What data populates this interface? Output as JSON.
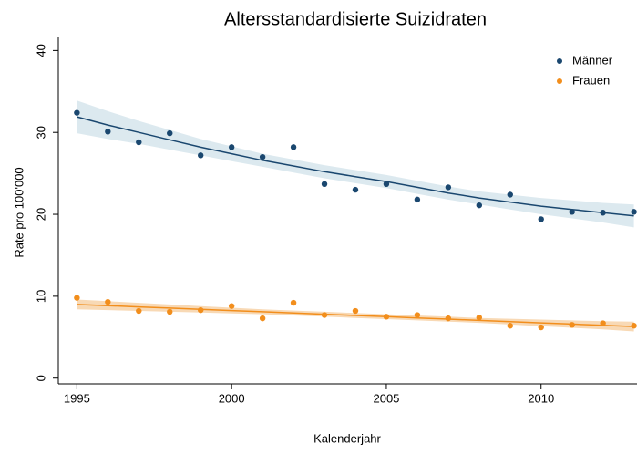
{
  "chart_data": {
    "type": "scatter_fit",
    "title": "Altersstandardisierte Suizidraten",
    "xlabel": "Kalenderjahr",
    "ylabel": "Rate pro 100'000",
    "x": [
      1995,
      1996,
      1997,
      1998,
      1999,
      2000,
      2001,
      2002,
      2003,
      2004,
      2005,
      2006,
      2007,
      2008,
      2009,
      2010,
      2011,
      2012,
      2013
    ],
    "xlim": [
      1994.4,
      2013.1
    ],
    "xticks": [
      1995,
      2000,
      2005,
      2010
    ],
    "ylim": [
      -0.7,
      41.6
    ],
    "yticks": [
      0,
      10,
      20,
      30,
      40
    ],
    "legend": "top-right",
    "series": [
      {
        "name": "Männer",
        "color": "#1a476f",
        "band_color": "#dce9ef",
        "values": [
          32.4,
          30.1,
          28.8,
          29.9,
          27.2,
          28.2,
          27.0,
          28.2,
          23.7,
          23.0,
          23.7,
          21.8,
          23.3,
          21.1,
          22.4,
          19.4,
          20.3,
          20.2,
          20.3
        ],
        "fit": [
          31.9,
          30.9,
          30.0,
          29.1,
          28.2,
          27.4,
          26.6,
          25.9,
          25.2,
          24.6,
          24.0,
          23.3,
          22.6,
          22.0,
          21.5,
          21.0,
          20.6,
          20.2,
          19.8
        ],
        "ci": [
          2.0,
          1.7,
          1.4,
          1.2,
          1.0,
          0.9,
          0.8,
          0.8,
          0.8,
          0.8,
          0.8,
          0.8,
          0.8,
          0.8,
          0.9,
          1.0,
          1.1,
          1.2,
          1.4
        ]
      },
      {
        "name": "Frauen",
        "color": "#f28e1c",
        "band_color": "#f8d9b5",
        "values": [
          9.8,
          9.3,
          8.2,
          8.1,
          8.3,
          8.8,
          7.3,
          9.2,
          7.7,
          8.2,
          7.5,
          7.7,
          7.3,
          7.4,
          6.4,
          6.2,
          6.5,
          6.7,
          6.4
        ],
        "fit": [
          9.0,
          8.85,
          8.7,
          8.55,
          8.4,
          8.25,
          8.1,
          7.95,
          7.8,
          7.65,
          7.5,
          7.35,
          7.2,
          7.05,
          6.9,
          6.75,
          6.6,
          6.45,
          6.3
        ],
        "ci": [
          0.6,
          0.55,
          0.5,
          0.45,
          0.4,
          0.35,
          0.3,
          0.3,
          0.3,
          0.3,
          0.3,
          0.3,
          0.3,
          0.3,
          0.35,
          0.4,
          0.45,
          0.5,
          0.6
        ]
      }
    ]
  }
}
